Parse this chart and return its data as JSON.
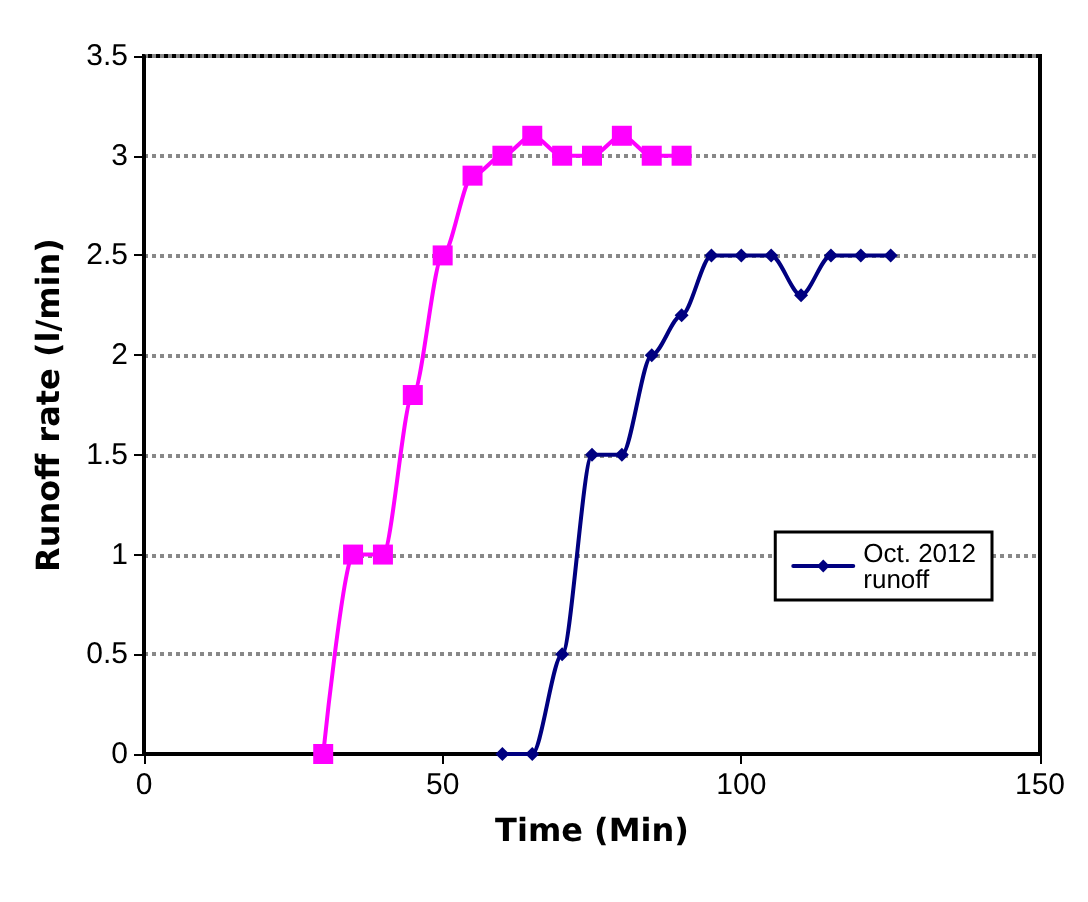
{
  "chart_data": {
    "type": "line",
    "xlabel": "Time (Min)",
    "ylabel": "Runoff rate (l/min)",
    "xlim": [
      0,
      150
    ],
    "xticks": [
      0,
      50,
      100,
      150
    ],
    "ylim": [
      0,
      3.5
    ],
    "yticks": [
      0,
      0.5,
      1,
      1.5,
      2,
      2.5,
      3,
      3.5
    ],
    "grid": "y",
    "legend": "right",
    "series": [
      {
        "color": "#ff00ff",
        "marker": "square",
        "x": [
          30,
          35,
          40,
          45,
          50,
          55,
          60,
          65,
          70,
          75,
          80,
          85,
          90
        ],
        "values": [
          0,
          1,
          1,
          1.8,
          2.5,
          2.9,
          3,
          3.1,
          3,
          3,
          3.1,
          3,
          3
        ]
      },
      {
        "name": "Oct. 2012\nrunoff",
        "color": "#000080",
        "marker": "diamond",
        "x": [
          60,
          65,
          70,
          75,
          80,
          85,
          90,
          95,
          100,
          105,
          110,
          115,
          120,
          125
        ],
        "values": [
          0,
          0,
          0.5,
          1.5,
          1.5,
          2,
          2.2,
          2.5,
          2.5,
          2.5,
          2.3,
          2.5,
          2.5,
          2.5
        ]
      }
    ]
  }
}
